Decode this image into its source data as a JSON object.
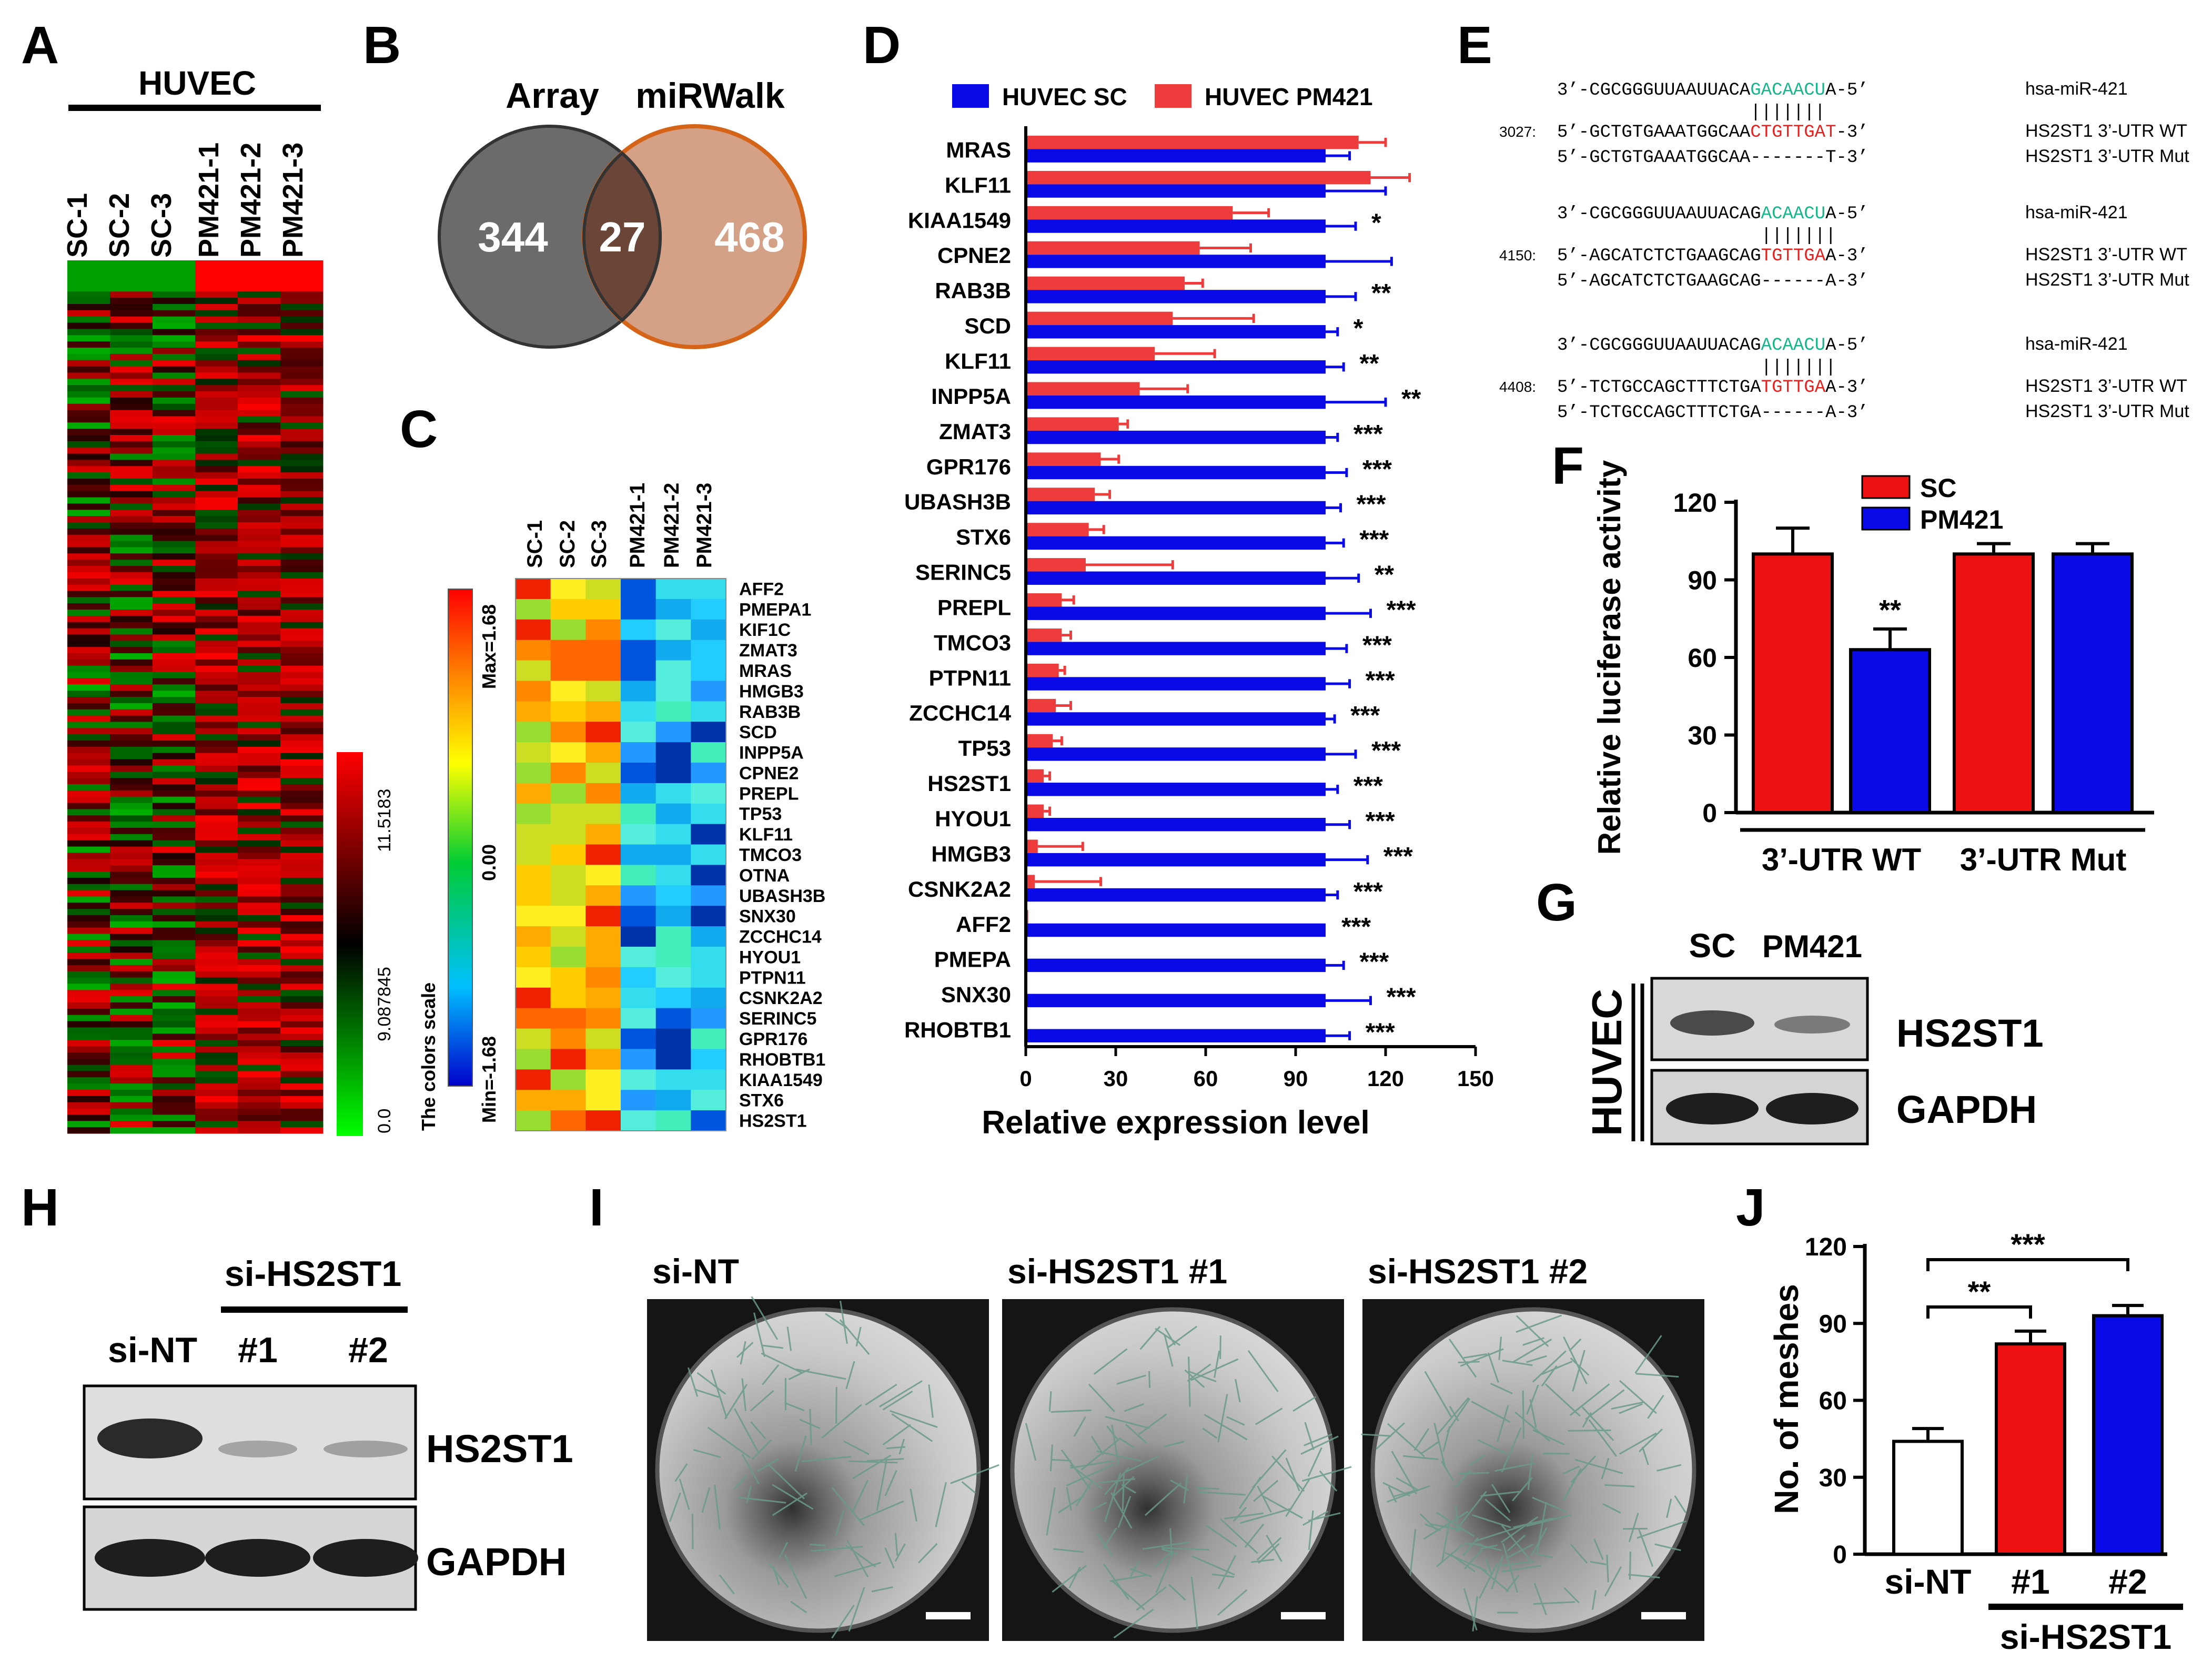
{
  "panel_labels": [
    "A",
    "B",
    "C",
    "D",
    "E",
    "F",
    "G",
    "H",
    "I",
    "J"
  ],
  "colors": {
    "red": "#ee1111",
    "blue": "#0a0ae8",
    "dred": "#e83a3a",
    "green_seq": "#16b58a",
    "red_seq": "#e8201d",
    "venn_left": "#6b6b6b",
    "venn_right": "#d4a187",
    "venn_overlap": "#6a4538",
    "venn_right_stroke": "#d56419"
  },
  "panelA": {
    "title": "HUVEC",
    "columns": [
      "SC-1",
      "SC-2",
      "SC-3",
      "PM421-1",
      "PM421-2",
      "PM421-3"
    ],
    "scale_ticks": [
      "11.5183",
      "9.087845",
      "0.0"
    ]
  },
  "panelB": {
    "left_label": "Array",
    "right_label": "miRWalk",
    "left_only": "344",
    "overlap": "27",
    "right_only": "468"
  },
  "panelC": {
    "columns": [
      "SC-1",
      "SC-2",
      "SC-3",
      "PM421-1",
      "PM421-2",
      "PM421-3"
    ],
    "scale_title": "The colors scale",
    "scale_max": "Max=1.68",
    "scale_mid": "0.00",
    "scale_min": "Min=-1.68",
    "genes": [
      "AFF2",
      "PMEPA1",
      "KIF1C",
      "ZMAT3",
      "MRAS",
      "HMGB3",
      "RAB3B",
      "SCD",
      "INPP5A",
      "CPNE2",
      "PREPL",
      "TP53",
      "KLF11",
      "TMCO3",
      "OTNA",
      "UBASH3B",
      "SNX30",
      "ZCCHC14",
      "HYOU1",
      "PTPN11",
      "CSNK2A2",
      "SERINC5",
      "GPR176",
      "RHOBTB1",
      "KIAA1549",
      "STX6",
      "HS2ST1"
    ]
  },
  "panelE": {
    "rows": [
      {
        "mirna": [
          "3’-CGCGGGUUAAUUACA",
          "GACAACU",
          "A-5’"
        ],
        "mirna_label": "hsa-miR-421",
        "pos": "3027:",
        "wt": [
          "5’-GCTGTGAAATGGCAA",
          "CTGTTGAT",
          "-3’"
        ],
        "wt_label": "HS2ST1 3’-UTR WT",
        "mut": "5’-GCTGTGAAATGGCAA-------T-3’",
        "mut_label": "HS2ST1 3’-UTR Mut"
      },
      {
        "mirna": [
          "3’-CGCGGGUUAAUUACAG",
          "ACAACU",
          "A-5’"
        ],
        "mirna_label": "hsa-miR-421",
        "pos": "4150:",
        "wt": [
          "5’-AGCATCTCTGAAGCAG",
          "TGTTGA",
          "A-3’"
        ],
        "wt_label": "HS2ST1 3’-UTR WT",
        "mut": "5’-AGCATCTCTGAAGCAG------A-3’",
        "mut_label": "HS2ST1 3’-UTR Mut"
      },
      {
        "mirna": [
          "3’-CGCGGGUUAAUUACAG",
          "ACAACU",
          "A-5’"
        ],
        "mirna_label": "hsa-miR-421",
        "pos": "4408:",
        "wt": [
          "5’-TCTGCCAGCTTTCTGA",
          "TGTTGA",
          "A-3’"
        ],
        "wt_label": "HS2ST1 3’-UTR WT",
        "mut": "5’-TCTGCCAGCTTTCTGA------A-3’",
        "mut_label": "HS2ST1 3’-UTR Mut"
      }
    ],
    "pair_marks": "|||||||"
  },
  "panelG": {
    "lanes": [
      "SC",
      "PM421"
    ],
    "side_label": "HUVEC",
    "bands": [
      "HS2ST1",
      "GAPDH"
    ]
  },
  "panelH": {
    "lanes": [
      "si-NT",
      "#1",
      "#2"
    ],
    "group_label": "si-HS2ST1",
    "bands": [
      "HS2ST1",
      "GAPDH"
    ]
  },
  "panelI": {
    "images": [
      "si-NT",
      "si-HS2ST1 #1",
      "si-HS2ST1 #2"
    ]
  },
  "chart_data": [
    {
      "id": "D",
      "type": "bar",
      "orientation": "horizontal",
      "categories": [
        "MRAS",
        "KLF11",
        "KIAA1549",
        "CPNE2",
        "RAB3B",
        "SCD",
        "KLF11",
        "INPP5A",
        "ZMAT3",
        "GPR176",
        "UBASH3B",
        "STX6",
        "SERINC5",
        "PREPL",
        "TMCO3",
        "PTPN11",
        "ZCCHC14",
        "TP53",
        "HS2ST1",
        "HYOU1",
        "HMGB3",
        "CSNK2A2",
        "AFF2",
        "PMEPA",
        "SNX30",
        "RHOBTB1"
      ],
      "series": [
        {
          "name": "HUVEC SC",
          "values": [
            100,
            100,
            100,
            100,
            100,
            100,
            100,
            100,
            100,
            100,
            100,
            100,
            100,
            100,
            100,
            100,
            100,
            100,
            100,
            100,
            100,
            100,
            100,
            100,
            100,
            100
          ],
          "errors": [
            8,
            20,
            10,
            22,
            10,
            4,
            6,
            20,
            4,
            7,
            5,
            6,
            11,
            15,
            7,
            8,
            3,
            10,
            4,
            8,
            14,
            4,
            0,
            6,
            15,
            8
          ]
        },
        {
          "name": "HUVEC PM421",
          "values": [
            111,
            115,
            69,
            58,
            53,
            49,
            43,
            38,
            31,
            25,
            23,
            21,
            20,
            12,
            12,
            11,
            10,
            9,
            6,
            6,
            4,
            3,
            0.8,
            0.5,
            0.4,
            0.3
          ],
          "errors": [
            9,
            13,
            12,
            17,
            6,
            27,
            20,
            16,
            3,
            6,
            5,
            5,
            29,
            4,
            3,
            2,
            5,
            3,
            2,
            2,
            15,
            22,
            0,
            0,
            0,
            0
          ]
        }
      ],
      "significance": [
        "",
        "",
        "*",
        "",
        "**",
        "*",
        "**",
        "**",
        "***",
        "***",
        "***",
        "***",
        "**",
        "***",
        "***",
        "***",
        "***",
        "***",
        "***",
        "***",
        "***",
        "***",
        "***",
        "***",
        "***",
        "***"
      ],
      "xlabel": "Relative expression level",
      "ticks": [
        0,
        30,
        60,
        90,
        120,
        150
      ],
      "xlim": [
        0,
        150
      ]
    },
    {
      "id": "F",
      "type": "bar",
      "groups": [
        "3’-UTR WT",
        "3’-UTR Mut"
      ],
      "series": [
        {
          "name": "SC",
          "values": [
            100,
            100
          ],
          "errors": [
            10,
            4
          ]
        },
        {
          "name": "PM421",
          "values": [
            63,
            100
          ],
          "errors": [
            8,
            4
          ]
        }
      ],
      "significance": [
        "**",
        ""
      ],
      "ylabel": "Relative luciferase activity",
      "ticks": [
        0,
        30,
        60,
        90,
        120
      ],
      "ylim": [
        0,
        120
      ]
    },
    {
      "id": "J",
      "type": "bar",
      "categories": [
        "si-NT",
        "#1",
        "#2"
      ],
      "values": [
        44,
        82,
        93
      ],
      "errors": [
        5,
        5,
        4
      ],
      "colors": [
        "#ffffff",
        "#ee1111",
        "#0a0ae8"
      ],
      "group_label": "si-HS2ST1",
      "comparisons": [
        {
          "from": 0,
          "to": 1,
          "label": "**"
        },
        {
          "from": 0,
          "to": 2,
          "label": "***"
        }
      ],
      "ylabel": "No. of meshes",
      "ticks": [
        0,
        30,
        60,
        90,
        120
      ],
      "ylim": [
        0,
        120
      ]
    }
  ]
}
